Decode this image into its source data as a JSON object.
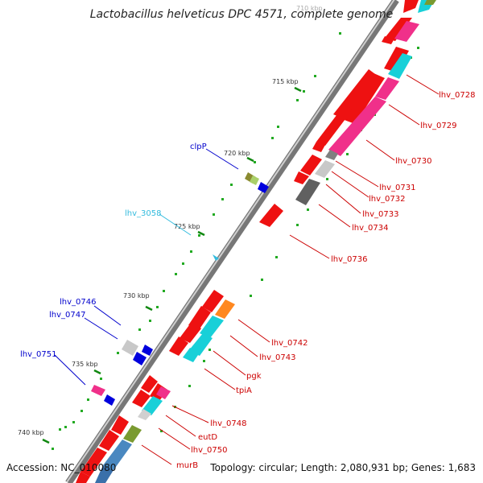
{
  "title": "Lactobacillus helveticus DPC 4571, complete genome",
  "footer": {
    "accession": "Accession: NC_010080",
    "topology": "Topology: circular; Length: 2,080,931 bp; Genes: 1,683"
  },
  "kbp_labels": [
    "710 kbp",
    "715 kbp",
    "720 kbp",
    "725 kbp",
    "730 kbp",
    "735 kbp",
    "740 kbp"
  ],
  "gene_labels": {
    "outer": [
      "lhv_0728",
      "lhv_0729",
      "lhv_0730",
      "lhv_0731",
      "lhv_0732",
      "lhv_0733",
      "lhv_0734",
      "lhv_0736",
      "lhv_0742",
      "lhv_0743",
      "pgk",
      "tpiA",
      "lhv_0748",
      "eutD",
      "lhv_0750",
      "murB"
    ],
    "inner": [
      "clpP",
      "lhv_3058",
      "lhv_0746",
      "lhv_0747",
      "lhv_0751"
    ]
  },
  "colors": {
    "backbone": "#8a8a8a",
    "cds": "#ee1111",
    "cds_label": "#cc0000",
    "trna_cyan": "#18d0d8",
    "pink": "#f0308a",
    "blue_strand": "#0000dd",
    "blue_label": "#0000cc",
    "cyan_label": "#33bbdd",
    "green_tick": "#22aa22"
  }
}
